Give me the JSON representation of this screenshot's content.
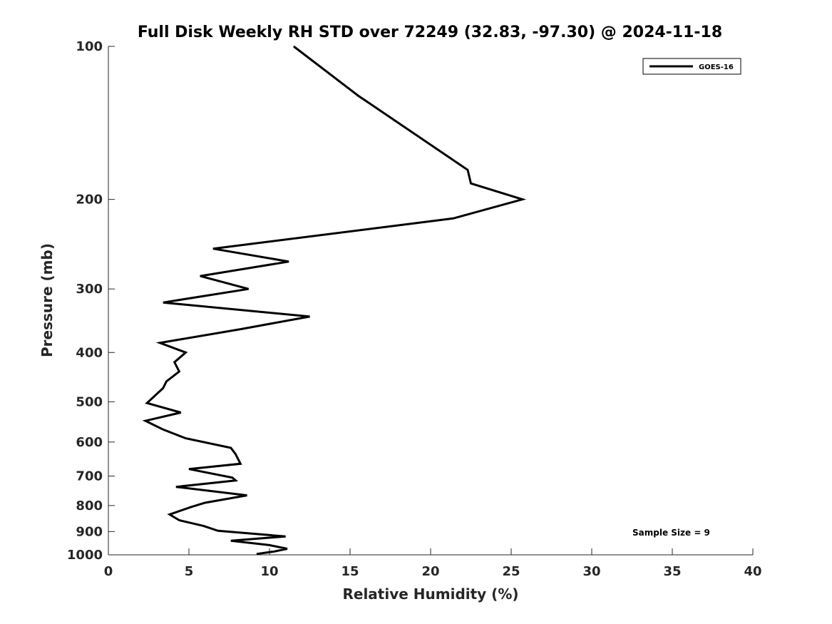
{
  "chart_data": {
    "type": "line",
    "title": "Full Disk Weekly RH STD over 72249 (32.83, -97.30) @ 2024-11-18",
    "xlabel": "Relative Humidity (%)",
    "ylabel": "Pressure (mb)",
    "xlim": [
      0,
      40
    ],
    "ylim": [
      100,
      1000
    ],
    "y_scale": "log",
    "y_reversed": true,
    "x_ticks": [
      0,
      5,
      10,
      15,
      20,
      25,
      30,
      35,
      40
    ],
    "y_ticks": [
      100,
      200,
      300,
      400,
      500,
      600,
      700,
      800,
      900,
      1000
    ],
    "grid": false,
    "legend_position": "top-right",
    "series": [
      {
        "name": "GOES-16",
        "color": "#000000",
        "points": [
          [
            11.5,
            100
          ],
          [
            15.5,
            125
          ],
          [
            22.3,
            175
          ],
          [
            22.5,
            186
          ],
          [
            25.7,
            200
          ],
          [
            21.4,
            218
          ],
          [
            6.5,
            250
          ],
          [
            11.2,
            265
          ],
          [
            5.7,
            283
          ],
          [
            8.7,
            300
          ],
          [
            3.4,
            319
          ],
          [
            12.5,
            340
          ],
          [
            8.2,
            360
          ],
          [
            3.2,
            383
          ],
          [
            4.8,
            400
          ],
          [
            4.1,
            418
          ],
          [
            4.4,
            436
          ],
          [
            3.6,
            456
          ],
          [
            3.4,
            470
          ],
          [
            2.4,
            503
          ],
          [
            4.5,
            525
          ],
          [
            2.3,
            545
          ],
          [
            3.4,
            567
          ],
          [
            4.8,
            590
          ],
          [
            7.6,
            616
          ],
          [
            7.9,
            634
          ],
          [
            8.2,
            662
          ],
          [
            5.0,
            678
          ],
          [
            7.7,
            705
          ],
          [
            7.9,
            714
          ],
          [
            4.2,
            735
          ],
          [
            8.6,
            764
          ],
          [
            6.0,
            790
          ],
          [
            5.1,
            806
          ],
          [
            3.8,
            833
          ],
          [
            4.4,
            855
          ],
          [
            5.9,
            877
          ],
          [
            6.8,
            897
          ],
          [
            11.0,
            920
          ],
          [
            7.6,
            938
          ],
          [
            10.0,
            957
          ],
          [
            11.1,
            973
          ],
          [
            10.3,
            985
          ],
          [
            9.2,
            996
          ]
        ]
      }
    ],
    "annotations": [
      {
        "text": "Sample Size = 9",
        "position": "bottom-right"
      }
    ]
  }
}
